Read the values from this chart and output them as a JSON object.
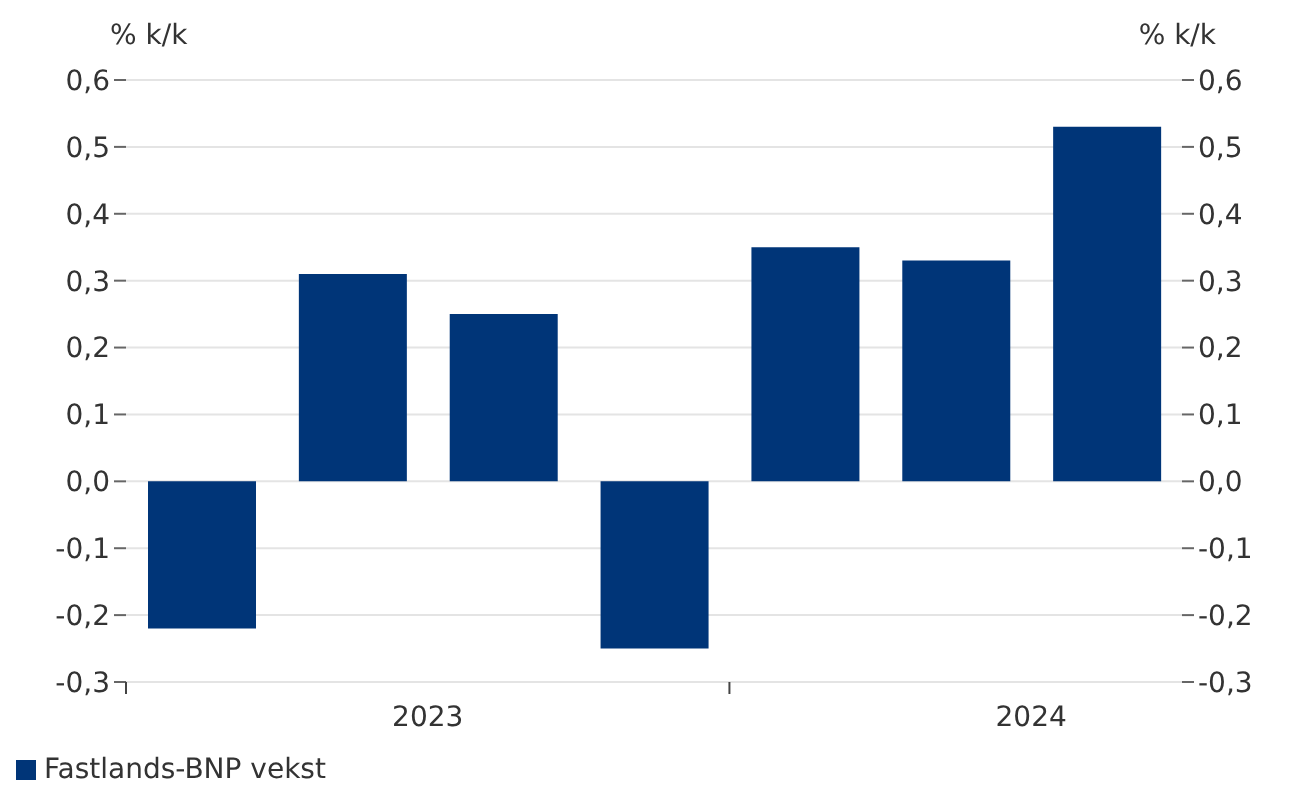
{
  "chart_data": {
    "type": "bar",
    "x": [
      2023.125,
      2023.375,
      2023.625,
      2023.875,
      2024.125,
      2024.375,
      2024.625
    ],
    "xlim": [
      2023,
      2024.75
    ],
    "xticks": [
      {
        "value": 2023,
        "label": null
      },
      {
        "value": 2023.5,
        "label": "2023"
      },
      {
        "value": 2024,
        "label": null
      },
      {
        "value": 2024.5,
        "label": "2024"
      }
    ],
    "series": [
      {
        "name": "Fastlands-BNP vekst",
        "color": "#003578",
        "values": [
          -0.22,
          0.31,
          0.25,
          -0.25,
          0.35,
          0.33,
          0.53
        ]
      }
    ],
    "ylabel": "% k/k",
    "y2label": "% k/k",
    "ylim": [
      -0.3,
      0.6
    ],
    "yticks": [
      {
        "value": -0.3,
        "label": "-0,3"
      },
      {
        "value": -0.2,
        "label": "-0,2"
      },
      {
        "value": -0.1,
        "label": "-0,1"
      },
      {
        "value": 0,
        "label": "0,0"
      },
      {
        "value": 0.1,
        "label": "0,1"
      },
      {
        "value": 0.2,
        "label": "0,2"
      },
      {
        "value": 0.3,
        "label": "0,3"
      },
      {
        "value": 0.4,
        "label": "0,4"
      },
      {
        "value": 0.5,
        "label": "0,5"
      },
      {
        "value": 0.6,
        "label": "0,6"
      }
    ],
    "y2lim": [
      -0.3,
      0.6
    ],
    "y2ticks": [
      {
        "value": -0.3,
        "label": "-0,3"
      },
      {
        "value": -0.2,
        "label": "-0,2"
      },
      {
        "value": -0.1,
        "label": "-0,1"
      },
      {
        "value": 0,
        "label": "0,0"
      },
      {
        "value": 0.1,
        "label": "0,1"
      },
      {
        "value": 0.2,
        "label": "0,2"
      },
      {
        "value": 0.3,
        "label": "0,3"
      },
      {
        "value": 0.4,
        "label": "0,4"
      },
      {
        "value": 0.5,
        "label": "0,5"
      },
      {
        "value": 0.6,
        "label": "0,6"
      }
    ],
    "grid": "y",
    "legend": "bottom left"
  }
}
